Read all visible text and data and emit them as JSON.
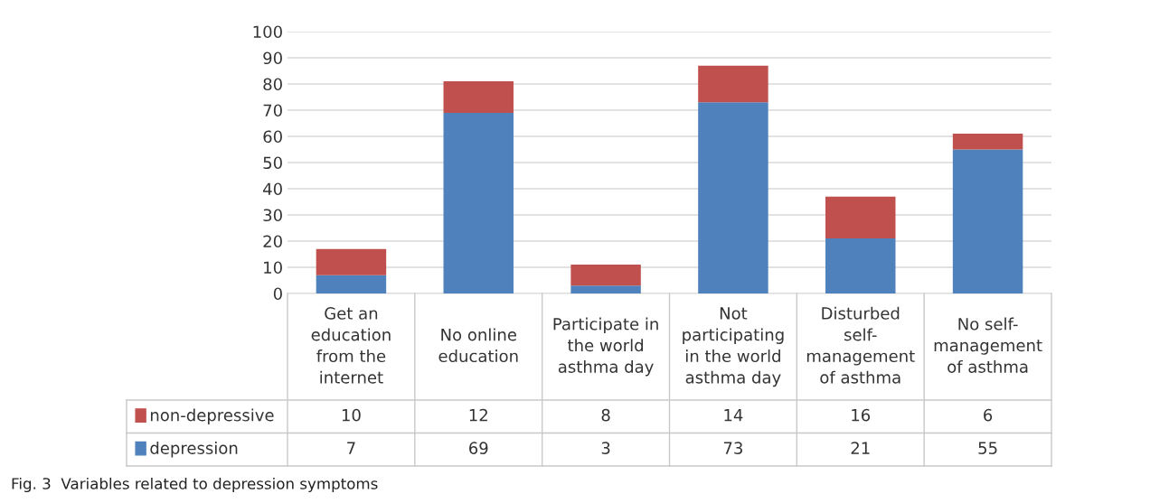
{
  "chart_data": {
    "type": "bar",
    "stacked": true,
    "categories": [
      "Get an\neducation\nfrom the\ninternet",
      "No online\neducation",
      "Participate in\nthe world\nasthma day",
      "Not\nparticipating\nin the world\nasthma day",
      "Disturbed\nself-\nmanagement\nof asthma",
      "No self-\nmanagement\nof asthma"
    ],
    "series": [
      {
        "name": "depression",
        "color": "#4f81bd",
        "values": [
          7,
          69,
          3,
          73,
          21,
          55
        ]
      },
      {
        "name": "non-depressive",
        "color": "#c0504d",
        "values": [
          10,
          12,
          8,
          14,
          16,
          6
        ]
      }
    ],
    "ylim": [
      0,
      100
    ],
    "yticks": [
      0,
      10,
      20,
      30,
      40,
      50,
      60,
      70,
      80,
      90,
      100
    ],
    "grid": "y",
    "legend": "bottom",
    "data_labels": true,
    "annotations": [
      "Fig. 3  Variables related to depression symptoms"
    ]
  }
}
